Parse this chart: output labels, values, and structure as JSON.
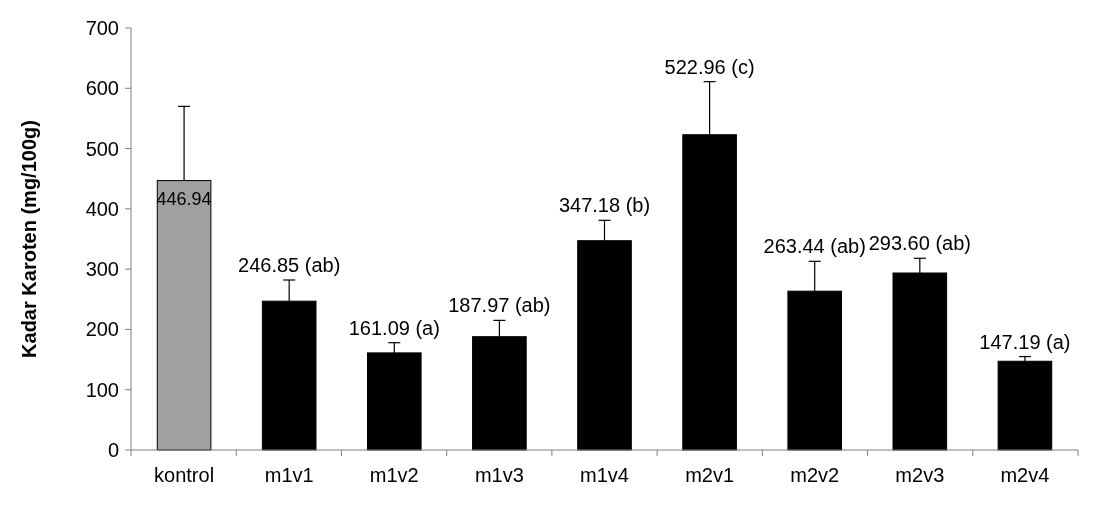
{
  "chart_data": {
    "type": "bar",
    "ylabel": "Kadar Karoten (mg/100g)",
    "categories": [
      "kontrol",
      "m1v1",
      "m1v2",
      "m1v3",
      "m1v4",
      "m2v1",
      "m2v2",
      "m2v3",
      "m2v4"
    ],
    "values": [
      446.94,
      246.85,
      161.09,
      187.97,
      347.18,
      522.96,
      263.44,
      293.6,
      147.19
    ],
    "value_labels": [
      "446.94",
      "246.85 (ab)",
      "161.09 (a)",
      "187.97 (ab)",
      "347.18 (b)",
      "522.96 (c)",
      "263.44 (ab)",
      "293.60 (ab)",
      "147.19 (a)"
    ],
    "errors": [
      [
        446.94,
        570
      ],
      [
        246.85,
        282
      ],
      [
        161.09,
        178
      ],
      [
        187.97,
        215
      ],
      [
        347.18,
        381
      ],
      [
        522.96,
        611
      ],
      [
        263.44,
        313
      ],
      [
        293.6,
        318
      ],
      [
        147.19,
        155
      ]
    ],
    "colors": [
      "#a0a0a0",
      "#000000",
      "#000000",
      "#000000",
      "#000000",
      "#000000",
      "#000000",
      "#000000",
      "#000000"
    ],
    "ylim": [
      0,
      700
    ],
    "yticks": [
      0,
      100,
      200,
      300,
      400,
      500,
      600,
      700
    ],
    "grid": false
  }
}
